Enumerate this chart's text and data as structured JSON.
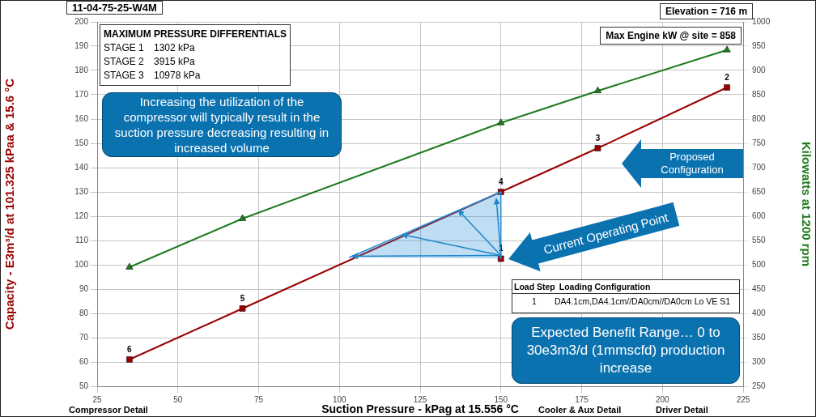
{
  "chart_data": {
    "type": "line",
    "xlabel": "Suction Pressure - kPag at 15.556 °C",
    "ylabel": "Capacity - E3m³/d at 101.325 kPaa & 15.6 °C",
    "y2label": "Kilowatts at 1200 rpm",
    "xlim": [
      25,
      225
    ],
    "xticks": [
      25,
      50,
      75,
      100,
      125,
      150,
      175,
      200,
      225
    ],
    "ylim": [
      50,
      200
    ],
    "yticks": [
      50,
      60,
      70,
      80,
      90,
      100,
      110,
      120,
      130,
      140,
      150,
      160,
      170,
      180,
      190,
      200
    ],
    "y2lim": [
      250,
      1000
    ],
    "y2ticks": [
      250,
      300,
      350,
      400,
      450,
      500,
      550,
      600,
      650,
      700,
      750,
      800,
      850,
      900,
      950,
      1000
    ],
    "grid": true,
    "legend": false,
    "series": [
      {
        "type": "area",
        "color": "#2b8fd6",
        "x": [
          103,
          150,
          150
        ],
        "values": [
          103,
          130,
          102.5
        ],
        "marker": "none"
      },
      {
        "color": "#9b0000",
        "x": [
          35,
          70,
          150,
          180,
          220
        ],
        "values": [
          61,
          82,
          130,
          148,
          173
        ],
        "marker": "square"
      },
      {
        "type": "scatter",
        "color": "#9b0000",
        "x": [
          150
        ],
        "values": [
          102.5
        ],
        "marker": "square"
      },
      {
        "color": "#1e7b1e",
        "axis": "y2",
        "x": [
          35,
          70,
          150,
          180,
          220
        ],
        "values": [
          495,
          595,
          792,
          858,
          942
        ],
        "marker": "triangle"
      }
    ],
    "annotations": [
      "11-04-75-25-W4M",
      "Elevation = 716 m",
      "Max Engine kW @ site = 858",
      "MAXIMUM PRESSURE DIFFERENTIALS",
      "STAGE 1",
      "1302 kPa",
      "STAGE 2",
      "3915 kPa",
      "STAGE 3",
      "10978 kPa",
      "Load Step",
      "Loading Configuration",
      "1",
      "DA4.1cm,DA4.1cm//DA0cm//DA0cm Lo VE S1",
      "Proposed Configuration",
      "Current Operating Point",
      "Increasing the utilization of the compressor will typically result in the suction pressure decreasing resulting in increased volume",
      "Expected Benefit Range… 0 to 30e3m3/d (1mmscfd) production increase",
      "Compressor Detail",
      "Cooler & Aux Detail",
      "Driver Detail",
      {
        "text": "1",
        "x": 150,
        "y": 102.5
      },
      {
        "text": "2",
        "x": 220,
        "y": 173
      },
      {
        "text": "3",
        "x": 180,
        "y": 148
      },
      {
        "text": "4",
        "x": 150,
        "y": 130
      },
      {
        "text": "5",
        "x": 70,
        "y": 82
      },
      {
        "text": "6",
        "x": 35,
        "y": 61
      }
    ]
  }
}
